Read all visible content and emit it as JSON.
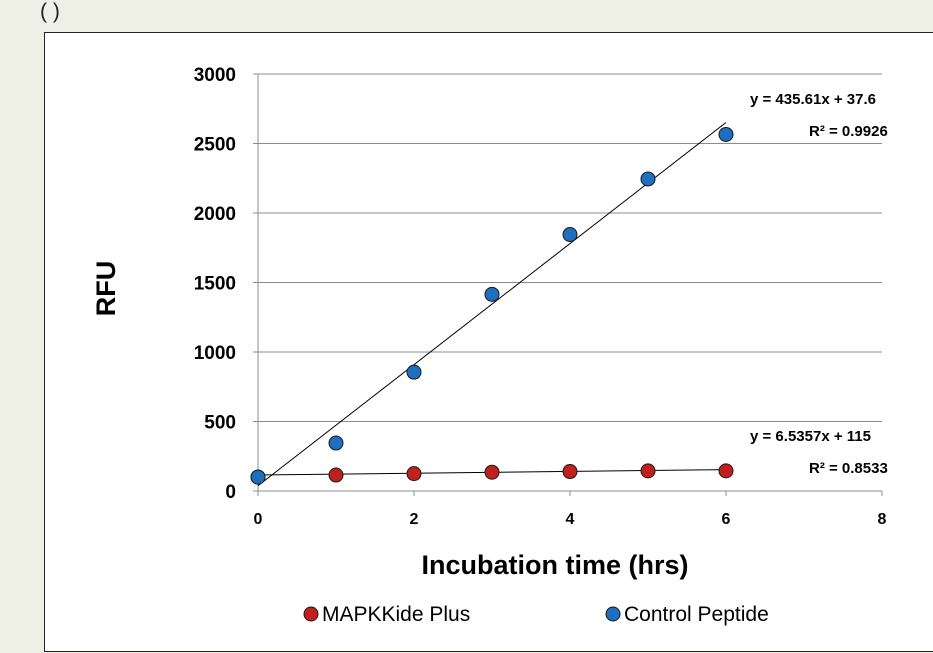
{
  "page": {
    "top_text": "(          )"
  },
  "chart_data": {
    "type": "scatter",
    "title": "",
    "xlabel": "Incubation time (hrs)",
    "ylabel": "RFU",
    "xlim": [
      0,
      8
    ],
    "ylim": [
      0,
      3000
    ],
    "xticks": [
      0,
      2,
      4,
      6,
      8
    ],
    "yticks": [
      0,
      500,
      1000,
      1500,
      2000,
      2500,
      3000
    ],
    "grid": "horizontal",
    "legend_position": "bottom",
    "series": [
      {
        "name": "MAPKKide Plus",
        "color": "#c0201e",
        "x": [
          0,
          1,
          2,
          3,
          4,
          5,
          6
        ],
        "y": [
          100,
          115,
          125,
          135,
          140,
          145,
          145
        ],
        "trendline": {
          "slope": 6.5357,
          "intercept": 115,
          "x_range": [
            0,
            6
          ]
        },
        "equation": "y = 6.5357x + 115",
        "r_squared": "R² = 0.8533"
      },
      {
        "name": "Control Peptide",
        "color": "#1f6fc0",
        "x": [
          0,
          1,
          2,
          3,
          4,
          5,
          6
        ],
        "y": [
          100,
          345,
          855,
          1415,
          1845,
          2245,
          2565
        ],
        "trendline": {
          "slope": 435.61,
          "intercept": 37.6,
          "x_range": [
            0,
            6
          ]
        },
        "equation": "y = 435.61x + 37.6",
        "r_squared": "R² = 0.9926"
      }
    ]
  }
}
